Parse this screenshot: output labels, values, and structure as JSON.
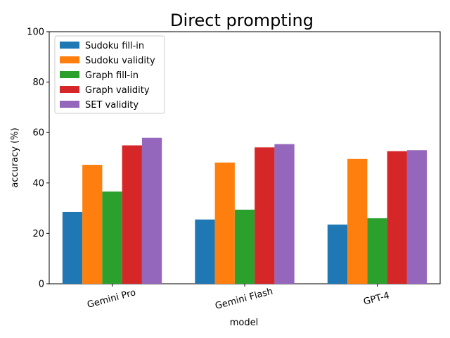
{
  "chart_data": {
    "type": "bar",
    "title": "Direct prompting",
    "xlabel": "model",
    "ylabel": "accuracy (%)",
    "categories": [
      "Gemini Pro",
      "Gemini Flash",
      "GPT-4"
    ],
    "ylim": [
      0,
      100
    ],
    "yticks": [
      0,
      20,
      40,
      60,
      80,
      100
    ],
    "grid": false,
    "legend_position": "top-left",
    "series": [
      {
        "name": "Sudoku fill-in",
        "color": "#1f77b4",
        "values": [
          28.5,
          25.5,
          23.5
        ]
      },
      {
        "name": "Sudoku validity",
        "color": "#ff7f0e",
        "values": [
          47.2,
          48.1,
          49.5
        ]
      },
      {
        "name": "Graph fill-in",
        "color": "#2ca02c",
        "values": [
          36.6,
          29.4,
          26.0
        ]
      },
      {
        "name": "Graph validity",
        "color": "#d62728",
        "values": [
          54.9,
          54.1,
          52.6
        ]
      },
      {
        "name": "SET validity",
        "color": "#9467bd",
        "values": [
          57.9,
          55.4,
          53.0
        ]
      }
    ]
  }
}
